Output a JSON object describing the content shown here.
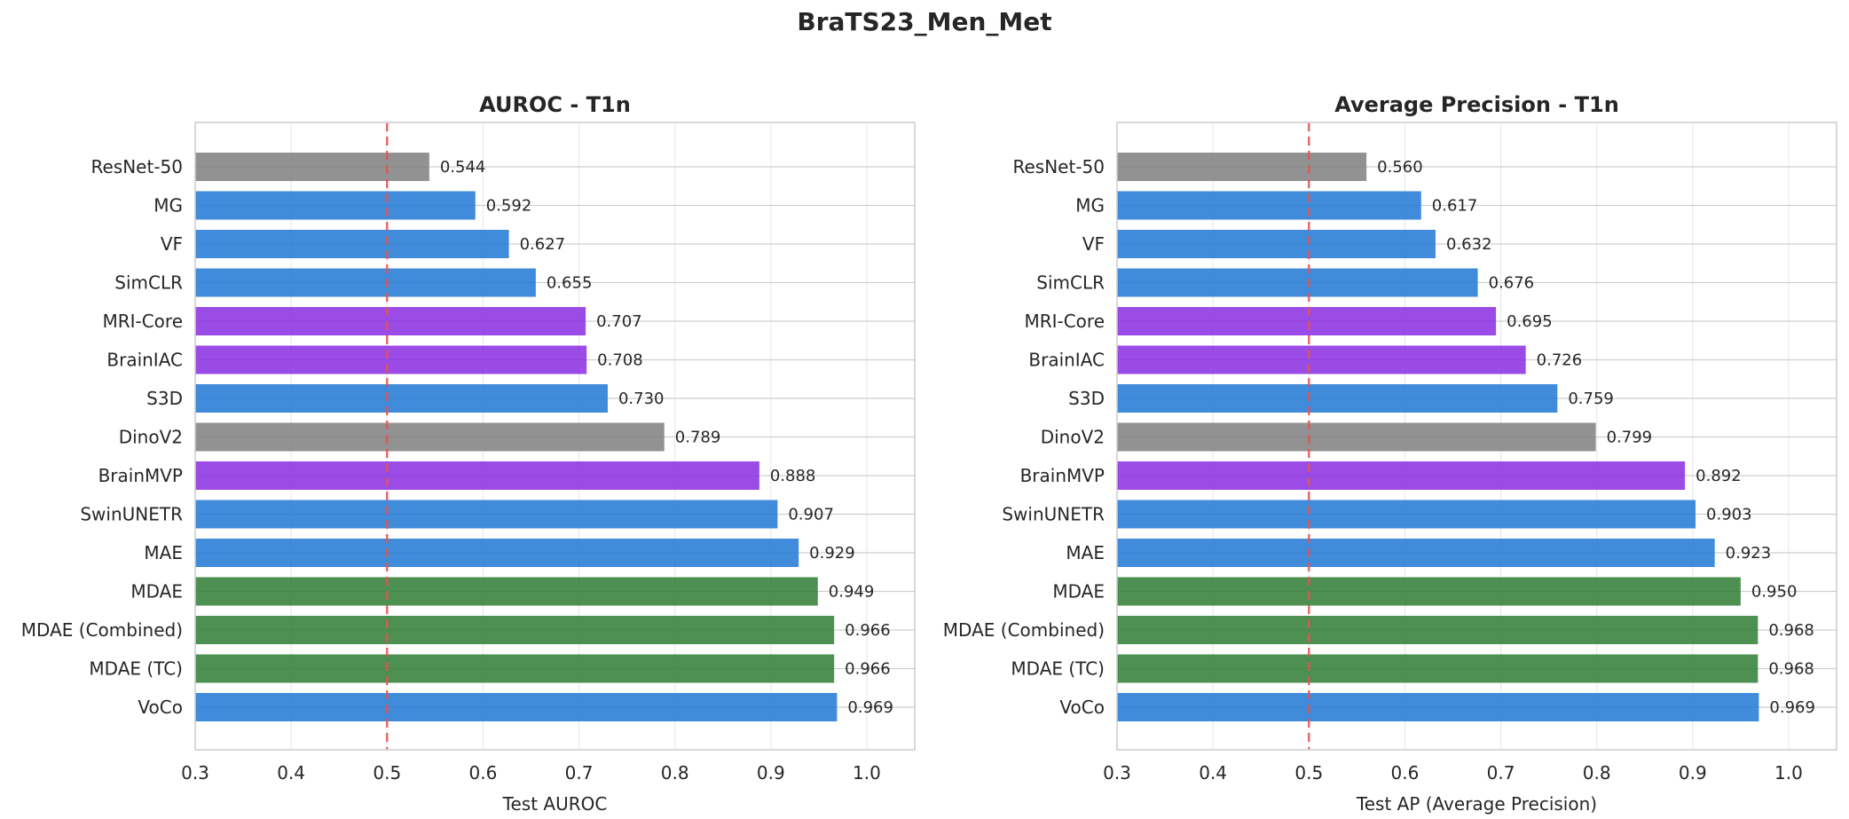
{
  "figure": {
    "title": "BraTS23_Men_Met"
  },
  "colors": {
    "gray": "#7f7f7f",
    "blue": "#1f77d4",
    "purple": "#8a2be2",
    "green": "#2e7d32",
    "baseline": "#e05555",
    "grid": "#e6e6e6",
    "frame": "#cccccc"
  },
  "chart_data": [
    {
      "type": "bar",
      "orientation": "horizontal",
      "title": "AUROC - T1n",
      "xlabel": "Test AUROC",
      "ylabel": "",
      "xlim": [
        0.3,
        1.05
      ],
      "xticks": [
        "0.3",
        "0.4",
        "0.5",
        "0.6",
        "0.7",
        "0.8",
        "0.9",
        "1.0"
      ],
      "reference_line": 0.5,
      "grid": true,
      "categories": [
        "ResNet-50",
        "MG",
        "VF",
        "SimCLR",
        "MRI-Core",
        "BrainIAC",
        "S3D",
        "DinoV2",
        "BrainMVP",
        "SwinUNETR",
        "MAE",
        "MDAE",
        "MDAE (Combined)",
        "MDAE (TC)",
        "VoCo"
      ],
      "values": [
        0.544,
        0.592,
        0.627,
        0.655,
        0.707,
        0.708,
        0.73,
        0.789,
        0.888,
        0.907,
        0.929,
        0.949,
        0.966,
        0.966,
        0.969
      ],
      "labels": [
        "0.544",
        "0.592",
        "0.627",
        "0.655",
        "0.707",
        "0.708",
        "0.730",
        "0.789",
        "0.888",
        "0.907",
        "0.929",
        "0.949",
        "0.966",
        "0.966",
        "0.969"
      ],
      "bar_colors": [
        "gray",
        "blue",
        "blue",
        "blue",
        "purple",
        "purple",
        "blue",
        "gray",
        "purple",
        "blue",
        "blue",
        "green",
        "green",
        "green",
        "blue"
      ]
    },
    {
      "type": "bar",
      "orientation": "horizontal",
      "title": "Average Precision - T1n",
      "xlabel": "Test AP (Average Precision)",
      "ylabel": "",
      "xlim": [
        0.3,
        1.05
      ],
      "xticks": [
        "0.3",
        "0.4",
        "0.5",
        "0.6",
        "0.7",
        "0.8",
        "0.9",
        "1.0"
      ],
      "reference_line": 0.5,
      "grid": true,
      "categories": [
        "ResNet-50",
        "MG",
        "VF",
        "SimCLR",
        "MRI-Core",
        "BrainIAC",
        "S3D",
        "DinoV2",
        "BrainMVP",
        "SwinUNETR",
        "MAE",
        "MDAE",
        "MDAE (Combined)",
        "MDAE (TC)",
        "VoCo"
      ],
      "values": [
        0.56,
        0.617,
        0.632,
        0.676,
        0.695,
        0.726,
        0.759,
        0.799,
        0.892,
        0.903,
        0.923,
        0.95,
        0.968,
        0.968,
        0.969
      ],
      "labels": [
        "0.560",
        "0.617",
        "0.632",
        "0.676",
        "0.695",
        "0.726",
        "0.759",
        "0.799",
        "0.892",
        "0.903",
        "0.923",
        "0.950",
        "0.968",
        "0.968",
        "0.969"
      ],
      "bar_colors": [
        "gray",
        "blue",
        "blue",
        "blue",
        "purple",
        "purple",
        "blue",
        "gray",
        "purple",
        "blue",
        "blue",
        "green",
        "green",
        "green",
        "blue"
      ]
    }
  ]
}
